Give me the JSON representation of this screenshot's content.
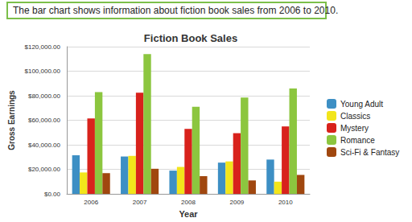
{
  "header": {
    "title": "The bar chart shows information about fiction book sales from 2006 to 2010."
  },
  "chart_data": {
    "type": "bar",
    "title": "Fiction Book Sales",
    "x_label": "Year",
    "y_label": "Gross Earnings",
    "categories": [
      "2006",
      "2007",
      "2008",
      "2009",
      "2010"
    ],
    "series": [
      {
        "name": "Young Adult",
        "color": "#3d8fc4",
        "values": [
          31500,
          30500,
          19000,
          25500,
          28000
        ]
      },
      {
        "name": "Classics",
        "color": "#f2e51b",
        "values": [
          17500,
          31000,
          22000,
          26500,
          10000
        ]
      },
      {
        "name": "Mystery",
        "color": "#d8221c",
        "values": [
          61500,
          82500,
          53000,
          49500,
          55000
        ]
      },
      {
        "name": "Romance",
        "color": "#8cc63f",
        "values": [
          83000,
          114000,
          71000,
          78500,
          86000
        ]
      },
      {
        "name": "Sci-Fi & Fantasy",
        "color": "#a0470f",
        "values": [
          17000,
          20500,
          14500,
          11000,
          15500
        ]
      }
    ],
    "ylim": [
      0,
      120000
    ],
    "yticks": [
      {
        "value": 0,
        "label": "$0.00"
      },
      {
        "value": 20000,
        "label": "$20,000.00"
      },
      {
        "value": 40000,
        "label": "$40,000.00"
      },
      {
        "value": 60000,
        "label": "$60,000.00"
      },
      {
        "value": 80000,
        "label": "$80,000.00"
      },
      {
        "value": 100000,
        "label": "$100,000.00"
      },
      {
        "value": 120000,
        "label": "$120,000.00"
      }
    ],
    "grid": true,
    "legend": "right"
  }
}
